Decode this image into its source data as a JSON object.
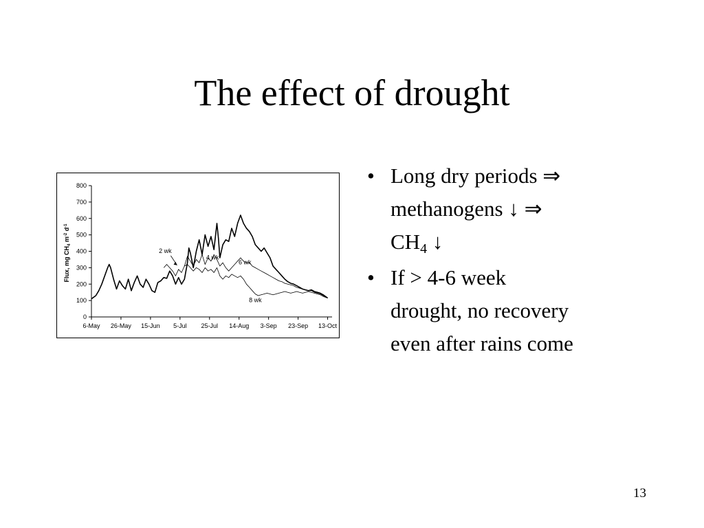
{
  "slide": {
    "title": "The effect of drought",
    "page_number": "13"
  },
  "bullets": [
    {
      "line1": "Long dry periods ⇒",
      "line2": "methanogens ↓ ⇒",
      "line3_main": "CH",
      "line3_sub": "4",
      "line3_tail": " ↓"
    },
    {
      "line1": "If  > 4-6 week",
      "line2": "drought, no recovery",
      "line3": "even after rains come"
    }
  ],
  "chart_data": {
    "type": "line",
    "title": "",
    "xlabel": "",
    "ylabel_parts": {
      "a": "Flux, mg CH",
      "b": "4",
      "c": " m",
      "d": "-2",
      "e": " d",
      "f": "-1"
    },
    "x_tick_labels": [
      "6-May",
      "26-May",
      "15-Jun",
      "5-Jul",
      "25-Jul",
      "14-Aug",
      "3-Sep",
      "23-Sep",
      "13-Oct"
    ],
    "x_tick_days": [
      0,
      20,
      40,
      60,
      80,
      100,
      120,
      140,
      160
    ],
    "xlim_days": [
      0,
      163
    ],
    "y_tick_labels": [
      "0",
      "100",
      "200",
      "300",
      "400",
      "500",
      "600",
      "700",
      "800"
    ],
    "ylim": [
      0,
      800
    ],
    "annotations": [
      {
        "text": "2 wk",
        "day": 50,
        "value": 390
      },
      {
        "text": "4 wk",
        "day": 82,
        "value": 350
      },
      {
        "text": "6 wk",
        "day": 104,
        "value": 320
      },
      {
        "text": "8 wk",
        "day": 111,
        "value": 90
      }
    ],
    "series": [
      {
        "style": "thick",
        "points": [
          [
            0,
            110
          ],
          [
            3,
            130
          ],
          [
            5,
            160
          ],
          [
            7,
            200
          ],
          [
            9,
            250
          ],
          [
            11,
            300
          ],
          [
            12,
            320
          ],
          [
            13,
            300
          ],
          [
            15,
            230
          ],
          [
            17,
            170
          ],
          [
            19,
            220
          ],
          [
            21,
            190
          ],
          [
            23,
            170
          ],
          [
            25,
            230
          ],
          [
            27,
            160
          ],
          [
            29,
            210
          ],
          [
            31,
            250
          ],
          [
            33,
            200
          ],
          [
            35,
            180
          ],
          [
            37,
            230
          ],
          [
            39,
            200
          ],
          [
            41,
            160
          ],
          [
            43,
            150
          ],
          [
            45,
            210
          ],
          [
            47,
            220
          ],
          [
            49,
            240
          ],
          [
            51,
            235
          ],
          [
            53,
            280
          ],
          [
            55,
            250
          ],
          [
            57,
            200
          ],
          [
            59,
            240
          ],
          [
            61,
            200
          ],
          [
            63,
            230
          ],
          [
            65,
            330
          ],
          [
            66,
            420
          ],
          [
            67,
            390
          ],
          [
            69,
            300
          ],
          [
            71,
            400
          ],
          [
            73,
            470
          ],
          [
            75,
            380
          ],
          [
            77,
            500
          ],
          [
            79,
            430
          ],
          [
            81,
            490
          ],
          [
            83,
            410
          ],
          [
            85,
            570
          ],
          [
            86,
            480
          ],
          [
            87,
            360
          ],
          [
            89,
            440
          ],
          [
            91,
            470
          ],
          [
            93,
            460
          ],
          [
            95,
            540
          ],
          [
            97,
            490
          ],
          [
            99,
            570
          ],
          [
            101,
            620
          ],
          [
            103,
            570
          ],
          [
            105,
            540
          ],
          [
            107,
            520
          ],
          [
            109,
            490
          ],
          [
            111,
            440
          ],
          [
            113,
            420
          ],
          [
            115,
            400
          ],
          [
            117,
            420
          ],
          [
            119,
            390
          ],
          [
            121,
            360
          ],
          [
            123,
            310
          ],
          [
            125,
            290
          ],
          [
            127,
            270
          ],
          [
            129,
            250
          ],
          [
            131,
            230
          ],
          [
            133,
            215
          ],
          [
            135,
            205
          ],
          [
            137,
            200
          ],
          [
            139,
            190
          ],
          [
            141,
            180
          ],
          [
            143,
            170
          ],
          [
            145,
            165
          ],
          [
            147,
            160
          ],
          [
            149,
            165
          ],
          [
            151,
            155
          ],
          [
            153,
            150
          ],
          [
            155,
            145
          ],
          [
            157,
            135
          ],
          [
            160,
            115
          ]
        ]
      },
      {
        "style": "thin",
        "points": [
          [
            49,
            300
          ],
          [
            51,
            320
          ],
          [
            53,
            300
          ],
          [
            55,
            280
          ],
          [
            57,
            250
          ],
          [
            59,
            290
          ],
          [
            61,
            270
          ],
          [
            63,
            310
          ],
          [
            65,
            370
          ],
          [
            67,
            340
          ],
          [
            69,
            310
          ],
          [
            71,
            350
          ],
          [
            73,
            330
          ],
          [
            75,
            380
          ],
          [
            77,
            320
          ],
          [
            79,
            360
          ],
          [
            81,
            340
          ],
          [
            83,
            380
          ],
          [
            85,
            350
          ],
          [
            87,
            310
          ],
          [
            89,
            330
          ],
          [
            91,
            300
          ],
          [
            93,
            280
          ],
          [
            95,
            300
          ],
          [
            97,
            320
          ],
          [
            99,
            340
          ],
          [
            101,
            360
          ],
          [
            103,
            340
          ],
          [
            105,
            330
          ],
          [
            107,
            330
          ],
          [
            109,
            310
          ],
          [
            111,
            300
          ],
          [
            113,
            290
          ],
          [
            115,
            280
          ],
          [
            117,
            270
          ],
          [
            119,
            260
          ],
          [
            121,
            250
          ],
          [
            123,
            240
          ],
          [
            125,
            230
          ],
          [
            127,
            220
          ],
          [
            129,
            215
          ],
          [
            131,
            205
          ],
          [
            133,
            200
          ],
          [
            135,
            195
          ],
          [
            137,
            190
          ],
          [
            139,
            180
          ],
          [
            141,
            175
          ],
          [
            143,
            170
          ],
          [
            145,
            165
          ],
          [
            147,
            160
          ],
          [
            149,
            160
          ],
          [
            151,
            150
          ],
          [
            153,
            145
          ],
          [
            155,
            140
          ],
          [
            157,
            130
          ],
          [
            160,
            115
          ]
        ]
      },
      {
        "style": "thin",
        "points": [
          [
            63,
            310
          ],
          [
            65,
            320
          ],
          [
            67,
            300
          ],
          [
            69,
            280
          ],
          [
            71,
            300
          ],
          [
            73,
            290
          ],
          [
            75,
            270
          ],
          [
            77,
            300
          ],
          [
            79,
            280
          ],
          [
            81,
            290
          ],
          [
            83,
            270
          ],
          [
            85,
            300
          ],
          [
            87,
            250
          ],
          [
            89,
            230
          ],
          [
            91,
            250
          ],
          [
            93,
            240
          ],
          [
            95,
            260
          ],
          [
            97,
            250
          ],
          [
            99,
            240
          ],
          [
            101,
            250
          ],
          [
            103,
            230
          ],
          [
            105,
            200
          ],
          [
            107,
            180
          ],
          [
            109,
            160
          ],
          [
            111,
            140
          ],
          [
            113,
            130
          ],
          [
            115,
            135
          ],
          [
            117,
            140
          ],
          [
            119,
            145
          ],
          [
            121,
            140
          ],
          [
            123,
            135
          ],
          [
            125,
            140
          ],
          [
            127,
            145
          ],
          [
            129,
            150
          ],
          [
            131,
            155
          ],
          [
            133,
            150
          ],
          [
            135,
            145
          ],
          [
            137,
            150
          ],
          [
            139,
            155
          ],
          [
            141,
            150
          ],
          [
            143,
            145
          ],
          [
            145,
            150
          ],
          [
            147,
            155
          ],
          [
            149,
            150
          ],
          [
            151,
            145
          ],
          [
            153,
            140
          ],
          [
            155,
            135
          ],
          [
            157,
            125
          ],
          [
            160,
            115
          ]
        ]
      }
    ]
  }
}
